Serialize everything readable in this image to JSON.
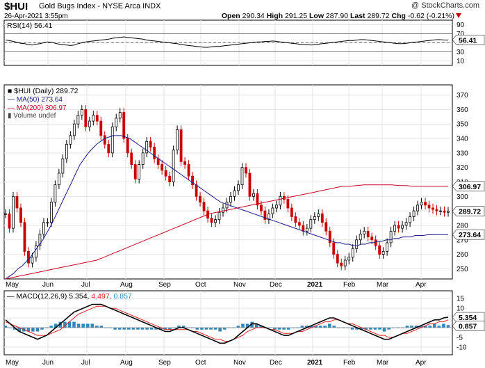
{
  "header": {
    "symbol": "$HUI",
    "name": "Gold Bugs Index - NYSE Arca INDX",
    "watermark": "@ StockCharts.com",
    "date": "26-Apr-2021 3:55pm",
    "open_label": "Open",
    "open": "290.34",
    "high_label": "High",
    "high": "291.25",
    "low_label": "Low",
    "low": "287.90",
    "last_label": "Last",
    "last": "289.72",
    "chg_label": "Chg",
    "chg": "-0.62 (-0.21%)"
  },
  "colors": {
    "up": "#000000",
    "down": "#cc0000",
    "ma50": "#1a1a8c",
    "ma200": "#cc0022",
    "macd": "#000000",
    "signal": "#dd2222",
    "histogram": "#3388bb",
    "grid": "#e4e4e4"
  },
  "chart_data": [
    {
      "type": "line",
      "panel": "RSI",
      "legend": "RSI(14) 56.41",
      "last_label": "56.41",
      "ylim": [
        0,
        100
      ],
      "ticks": [
        "90",
        "70",
        "50",
        "30",
        "10"
      ],
      "reference_lines": [
        70,
        50,
        30
      ],
      "values": [
        56,
        55,
        53,
        51,
        49,
        48,
        46,
        45,
        47,
        48,
        50,
        52,
        51,
        49,
        47,
        46,
        45,
        44,
        45,
        48,
        50,
        52,
        53,
        54,
        55,
        56,
        57,
        58,
        60,
        61,
        62,
        63,
        62,
        61,
        60,
        59,
        58,
        56,
        55,
        54,
        53,
        52,
        51,
        50,
        49,
        48,
        46,
        45,
        44,
        43,
        42,
        41,
        40,
        40,
        41,
        42,
        42,
        43,
        44,
        45,
        46,
        47,
        48,
        49,
        50,
        51,
        52,
        52,
        53,
        53,
        54,
        53,
        52,
        51,
        50,
        49,
        48,
        47,
        46,
        46,
        45,
        46,
        47,
        48,
        49,
        50,
        51,
        52,
        53,
        54,
        55,
        55,
        56,
        57,
        57,
        56,
        55,
        54,
        53,
        52,
        51,
        50,
        49,
        48,
        48,
        49,
        50,
        51,
        52,
        53,
        54,
        55,
        56,
        57,
        57,
        56,
        56
      ]
    },
    {
      "type": "line",
      "panel": "price",
      "legend": [
        "$HUI (Daily) 289.72",
        "MA(50) 273.64",
        "MA(200) 306.97",
        "Volume undef"
      ],
      "x_labels": [
        "May",
        "Jun",
        "Jul",
        "Aug",
        "Sep",
        "Oct",
        "Nov",
        "Dec",
        "2021",
        "Feb",
        "Mar",
        "Apr"
      ],
      "ylim": [
        243,
        377
      ],
      "ticks": [
        "370",
        "360",
        "350",
        "340",
        "330",
        "320",
        "310",
        "300",
        "290",
        "280",
        "270",
        "260",
        "250"
      ],
      "last_labels": {
        "ma200": "306.97",
        "price": "289.72",
        "ma50": "273.64"
      },
      "series": [
        {
          "name": "$HUI (Daily)",
          "values": [
            288,
            278,
            300,
            292,
            282,
            262,
            254,
            258,
            266,
            274,
            282,
            282,
            296,
            308,
            316,
            326,
            336,
            342,
            350,
            356,
            360,
            348,
            352,
            356,
            352,
            342,
            336,
            330,
            348,
            354,
            358,
            340,
            330,
            322,
            312,
            322,
            330,
            338,
            334,
            326,
            322,
            318,
            314,
            310,
            332,
            346,
            324,
            322,
            314,
            308,
            300,
            296,
            290,
            285,
            282,
            284,
            289,
            292,
            296,
            300,
            304,
            308,
            320,
            316,
            300,
            302,
            294,
            290,
            284,
            288,
            292,
            294,
            300,
            298,
            292,
            286,
            282,
            280,
            276,
            278,
            284,
            286,
            288,
            282,
            276,
            268,
            260,
            254,
            252,
            256,
            258,
            264,
            270,
            274,
            276,
            272,
            270,
            266,
            260,
            262,
            268,
            276,
            280,
            278,
            280,
            282,
            286,
            290,
            294,
            296,
            294,
            292,
            291,
            290,
            290,
            289,
            289.72
          ]
        },
        {
          "name": "MA(50)",
          "values": [
            243,
            245,
            247,
            250,
            252,
            255,
            258,
            262,
            266,
            270,
            275,
            280,
            286,
            292,
            298,
            304,
            310,
            316,
            322,
            326,
            330,
            333,
            336,
            338,
            340,
            341,
            342,
            342,
            342,
            341,
            340,
            338,
            336,
            334,
            332,
            330,
            328,
            326,
            324,
            322,
            320,
            318,
            316,
            314,
            312,
            310,
            308,
            306,
            304,
            302,
            300,
            298,
            296,
            295,
            294,
            293,
            292,
            291,
            290,
            289,
            288,
            287,
            286,
            285,
            284,
            283,
            282,
            281,
            280,
            279,
            278,
            277,
            276,
            275,
            274,
            273,
            272,
            271,
            270,
            269,
            268,
            268,
            267,
            267,
            266,
            266,
            267,
            267,
            268,
            268,
            269,
            269,
            270,
            270,
            271,
            271,
            272,
            272,
            272,
            273,
            273,
            273,
            273.5,
            273.5,
            273.6,
            273.6,
            273.6,
            273.64
          ]
        },
        {
          "name": "MA(200)",
          "values": [
            243,
            244,
            245,
            246,
            247,
            248,
            249,
            250,
            251,
            252,
            253,
            254,
            255,
            256,
            258,
            260,
            262,
            264,
            266,
            268,
            270,
            272,
            274,
            276,
            278,
            280,
            282,
            284,
            286,
            288,
            289,
            290,
            291,
            292,
            293,
            294,
            295,
            296,
            297,
            298,
            299,
            300,
            301,
            302,
            303,
            304,
            305,
            306,
            307,
            307,
            307.5,
            308,
            308,
            308,
            308,
            308,
            307.5,
            307.5,
            307,
            307,
            307,
            307,
            307,
            306.97
          ]
        }
      ]
    },
    {
      "type": "line",
      "panel": "MACD",
      "legend": {
        "label": "MACD(12,26,9)",
        "macd": "5.354",
        "signal": "4.497",
        "hist": "0.857"
      },
      "ylim": [
        -14,
        19
      ],
      "ticks": [
        "15",
        "10",
        "5",
        "0",
        "-5",
        "-10"
      ],
      "last_labels": {
        "macd": "5.354",
        "hist": "0.857"
      },
      "series": [
        {
          "name": "MACD",
          "values": [
            4,
            2,
            0,
            -2,
            -3,
            -4,
            -5,
            -6,
            -5,
            -4,
            -2,
            0,
            2,
            4,
            6,
            8,
            9,
            10,
            11,
            12,
            12,
            12,
            11,
            10,
            9,
            8,
            7,
            6,
            5,
            4,
            3,
            2,
            1,
            0,
            -1,
            -2,
            -2,
            -1,
            0,
            0,
            -1,
            -2,
            -3,
            -4,
            -5,
            -6,
            -7,
            -8,
            -8,
            -7,
            -6,
            -4,
            -2,
            0,
            2,
            2,
            1,
            0,
            -1,
            -2,
            -3,
            -4,
            -4,
            -3,
            -2,
            -1,
            0,
            1,
            2,
            3,
            4,
            5,
            5,
            4,
            3,
            2,
            1,
            0,
            -1,
            -2,
            -3,
            -4,
            -5,
            -6,
            -6,
            -5,
            -4,
            -3,
            -2,
            -1,
            0,
            1,
            2,
            3,
            4,
            4,
            5,
            5.354
          ]
        },
        {
          "name": "Signal",
          "values": [
            3,
            2,
            1,
            0,
            -1,
            -2,
            -3,
            -4,
            -4,
            -4,
            -3,
            -2,
            -1,
            1,
            3,
            5,
            7,
            8,
            9,
            10,
            11,
            11,
            11,
            10,
            10,
            9,
            8,
            7,
            6,
            5,
            4,
            3,
            2,
            1,
            0,
            -1,
            -1,
            -1,
            -1,
            -1,
            -1,
            -2,
            -2,
            -3,
            -4,
            -5,
            -6,
            -6,
            -7,
            -7,
            -6,
            -5,
            -4,
            -2,
            -1,
            0,
            0,
            0,
            -1,
            -1,
            -2,
            -3,
            -3,
            -3,
            -2,
            -2,
            -1,
            0,
            1,
            2,
            3,
            3,
            4,
            4,
            3,
            2,
            2,
            1,
            0,
            -1,
            -2,
            -3,
            -4,
            -4,
            -5,
            -5,
            -4,
            -3,
            -3,
            -2,
            -1,
            0,
            1,
            2,
            2,
            3,
            3,
            4,
            4.497
          ]
        }
      ]
    }
  ]
}
